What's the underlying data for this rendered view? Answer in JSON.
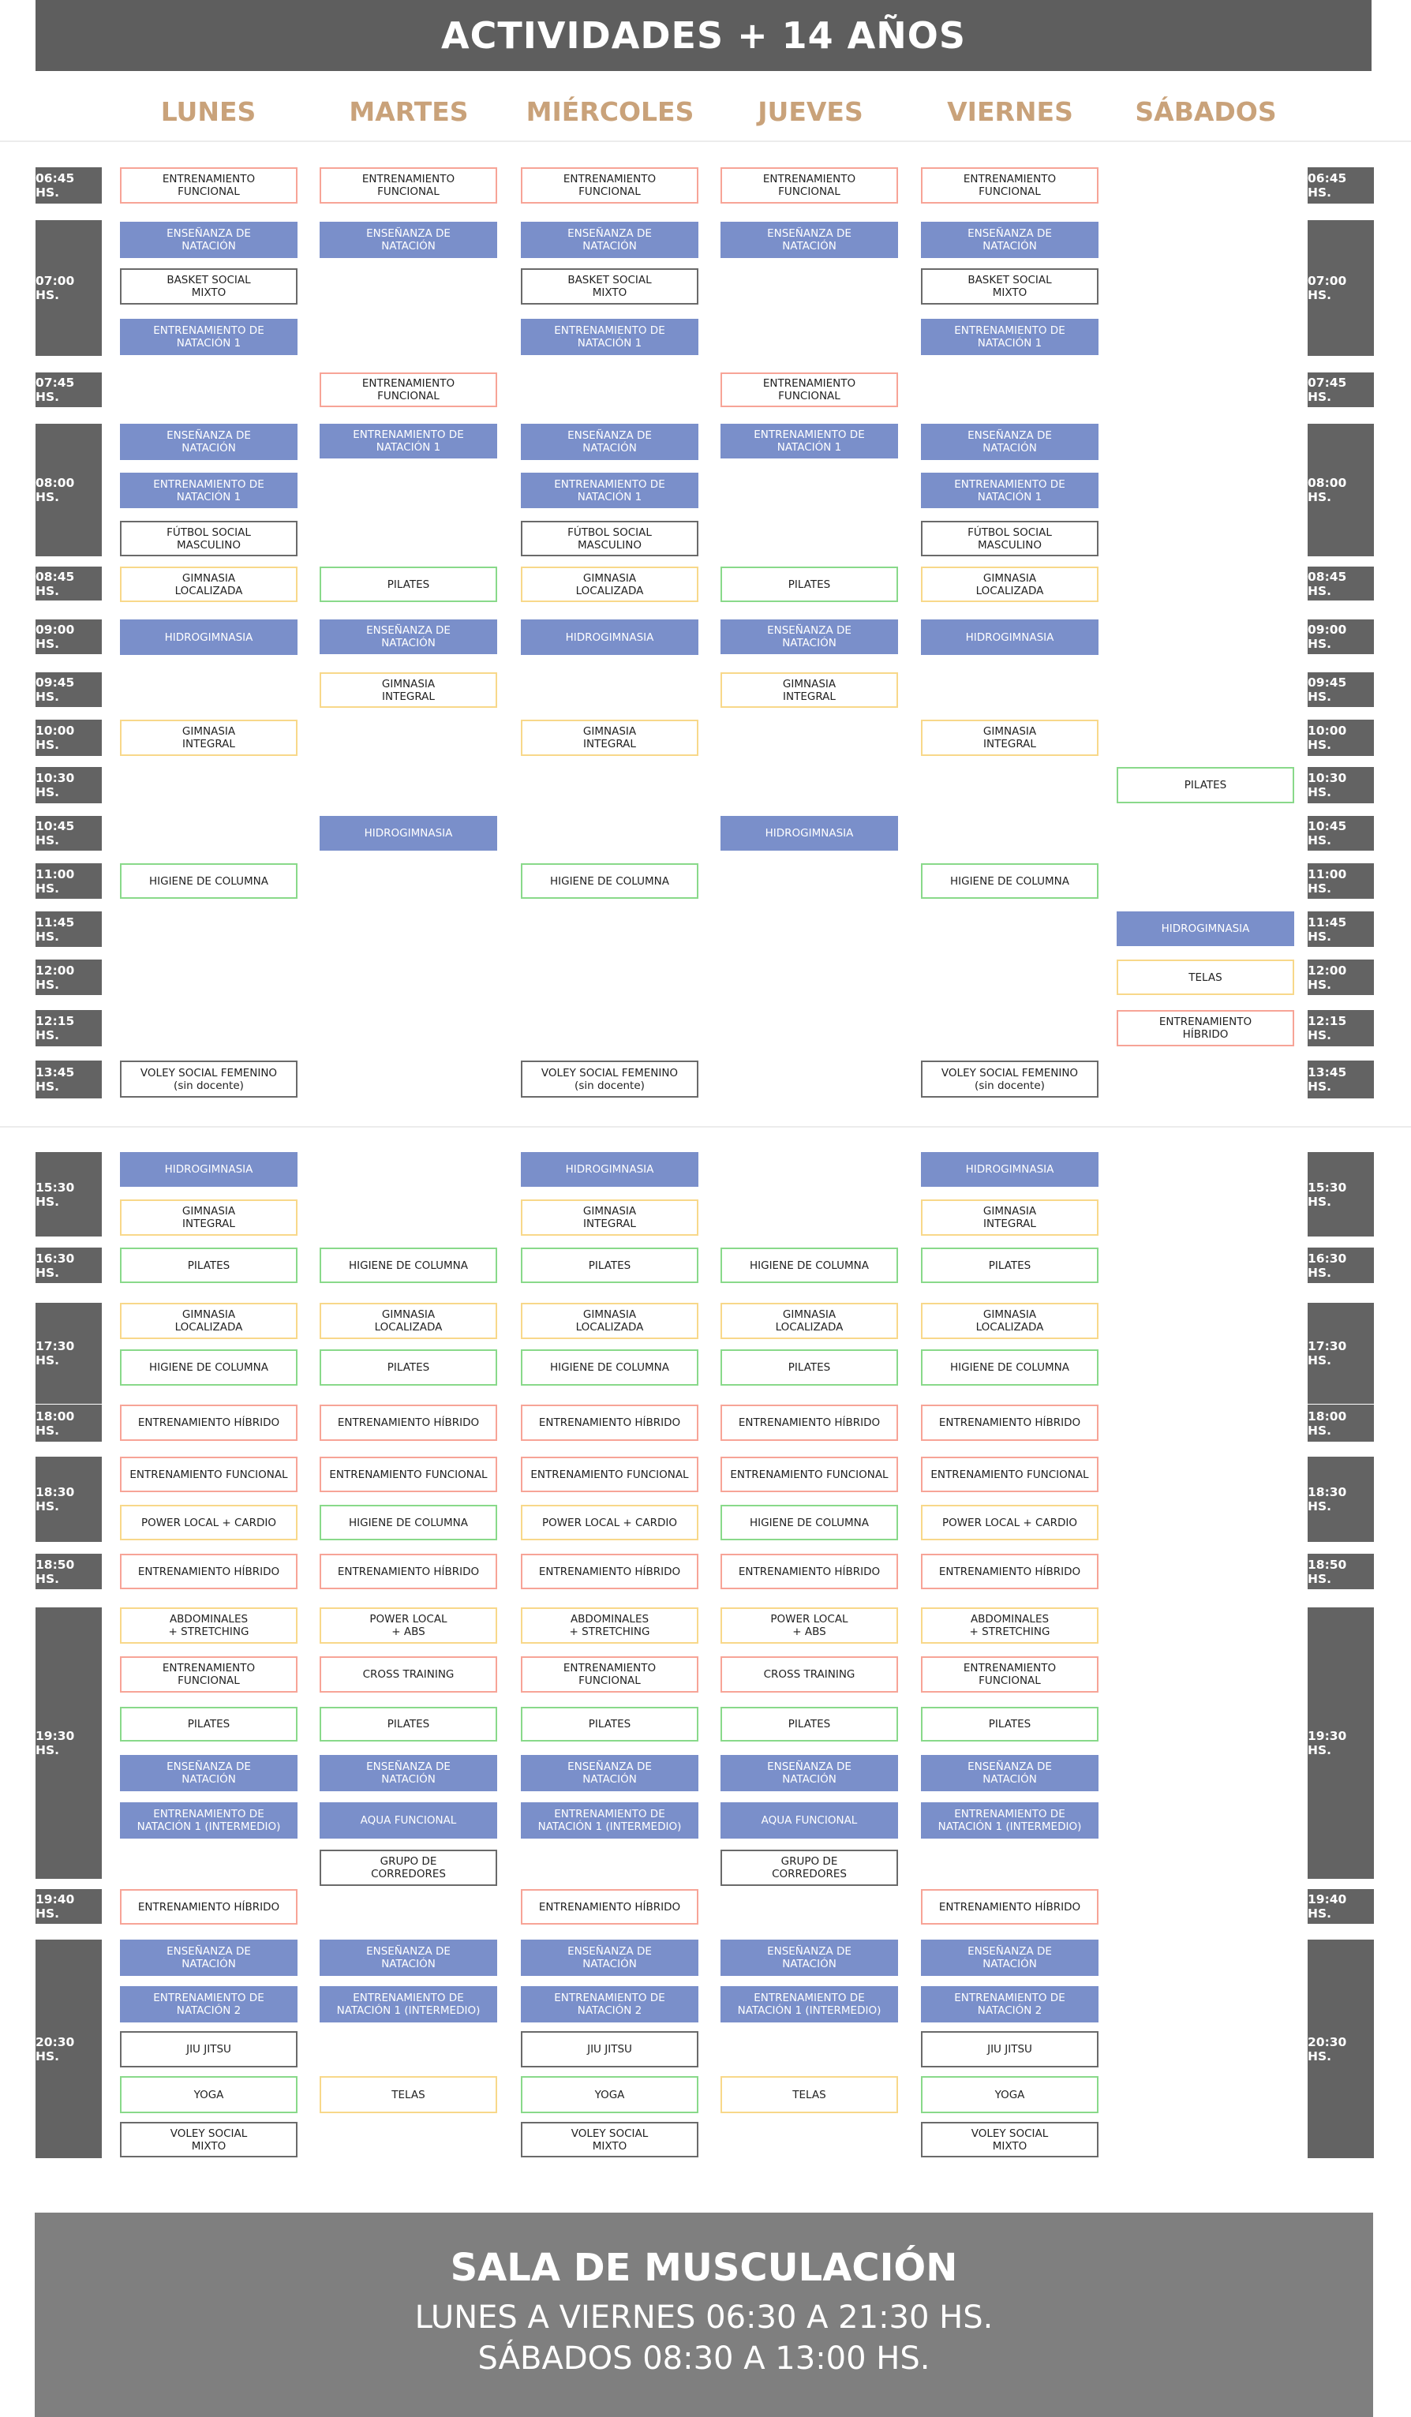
{
  "title": "ACTIVIDADES + 14 AÑOS",
  "days": [
    "LUNES",
    "MARTES",
    "MIÉRCOLES",
    "JUEVES",
    "VIERNES",
    "SÁBADOS"
  ],
  "colors": {
    "blue": "#7a8fca",
    "orange": "#f7a497",
    "yellow": "#f8d88a",
    "green": "#89d98a",
    "gray": "#6a6a6a",
    "day_header": "#c9a27a",
    "time_badge": "#636363"
  },
  "times": [
    "06:45 HS.",
    "07:00 HS.",
    "07:45 HS.",
    "08:00 HS.",
    "08:45 HS.",
    "09:00 HS.",
    "09:45 HS.",
    "10:00 HS.",
    "10:30 HS.",
    "10:45 HS.",
    "11:00 HS.",
    "11:45 HS.",
    "12:00 HS.",
    "12:15 HS.",
    "13:45 HS.",
    "15:30 HS.",
    "16:30 HS.",
    "17:30 HS.",
    "18:00 HS.",
    "18:30 HS.",
    "18:50 HS.",
    "19:30 HS.",
    "19:40 HS.",
    "20:30 HS."
  ],
  "activities": [
    {
      "t": "ENTRENAMIENTO\nFUNCIONAL",
      "c": "orange",
      "d": [
        0,
        1,
        2,
        3,
        4
      ]
    },
    {
      "t": "ENSEÑANZA DE\nNATACIÓN",
      "c": "blue",
      "d": [
        0,
        1,
        2,
        3,
        4
      ]
    },
    {
      "t": "BASKET SOCIAL\nMIXTO",
      "c": "gray",
      "d": [
        0,
        2,
        4
      ]
    },
    {
      "t": "ENTRENAMIENTO DE\nNATACIÓN 1",
      "c": "blue",
      "d": [
        0,
        2,
        4
      ]
    },
    {
      "t": "ENTRENAMIENTO\nFUNCIONAL",
      "c": "orange",
      "d": [
        1,
        3
      ]
    },
    {
      "t": "ENSEÑANZA DE\nNATACIÓN",
      "c": "blue",
      "d": [
        0,
        2,
        4
      ]
    },
    {
      "t": "ENTRENAMIENTO DE\nNATACIÓN 1",
      "c": "blue",
      "d": [
        1,
        3
      ]
    },
    {
      "t": "ENTRENAMIENTO DE\nNATACIÓN 1",
      "c": "blue",
      "d": [
        0,
        2,
        4
      ]
    },
    {
      "t": "FÚTBOL SOCIAL\nMASCULINO",
      "c": "gray",
      "d": [
        0,
        2,
        4
      ]
    },
    {
      "t": "GIMNASIA\nLOCALIZADA",
      "c": "yellow",
      "d": [
        0,
        2,
        4
      ]
    },
    {
      "t": "PILATES",
      "c": "green",
      "d": [
        1,
        3
      ]
    },
    {
      "t": "HIDROGIMNASIA",
      "c": "blue",
      "d": [
        0,
        2,
        4
      ]
    },
    {
      "t": "ENSEÑANZA DE\nNATACIÓN",
      "c": "blue",
      "d": [
        1,
        3
      ]
    },
    {
      "t": "GIMNASIA\nINTEGRAL",
      "c": "yellow",
      "d": [
        1,
        3
      ]
    },
    {
      "t": "GIMNASIA\nINTEGRAL",
      "c": "yellow",
      "d": [
        0,
        2,
        4
      ]
    },
    {
      "t": "PILATES",
      "c": "green",
      "d": [
        5
      ]
    },
    {
      "t": "HIDROGIMNASIA",
      "c": "blue",
      "d": [
        1,
        3
      ]
    },
    {
      "t": "HIGIENE DE COLUMNA",
      "c": "green",
      "d": [
        0,
        2,
        4
      ]
    },
    {
      "t": "HIDROGIMNASIA",
      "c": "blue",
      "d": [
        5
      ]
    },
    {
      "t": "TELAS",
      "c": "yellow",
      "d": [
        5
      ]
    },
    {
      "t": "ENTRENAMIENTO\nHÍBRIDO",
      "c": "orange",
      "d": [
        5
      ]
    },
    {
      "t": "VOLEY SOCIAL FEMENINO\n(sin docente)",
      "c": "gray",
      "d": [
        0,
        2,
        4
      ]
    },
    {
      "t": "HIDROGIMNASIA",
      "c": "blue",
      "d": [
        0,
        2,
        4
      ]
    },
    {
      "t": "GIMNASIA\nINTEGRAL",
      "c": "yellow",
      "d": [
        0,
        2,
        4
      ]
    },
    {
      "t": "PILATES",
      "c": "green",
      "d": [
        0,
        2,
        4
      ]
    },
    {
      "t": "HIGIENE DE COLUMNA",
      "c": "green",
      "d": [
        1,
        3
      ]
    },
    {
      "t": "GIMNASIA\nLOCALIZADA",
      "c": "yellow",
      "d": [
        0,
        1,
        2,
        3,
        4
      ]
    },
    {
      "t": "HIGIENE DE COLUMNA",
      "c": "green",
      "d": [
        0,
        2,
        4
      ]
    },
    {
      "t": "PILATES",
      "c": "green",
      "d": [
        1,
        3
      ]
    },
    {
      "t": "ENTRENAMIENTO HÍBRIDO",
      "c": "orange",
      "d": [
        0,
        1,
        2,
        3,
        4
      ]
    },
    {
      "t": "ENTRENAMIENTO FUNCIONAL",
      "c": "orange",
      "d": [
        0,
        1,
        2,
        3,
        4
      ]
    },
    {
      "t": "POWER LOCAL + CARDIO",
      "c": "yellow",
      "d": [
        0,
        2,
        4
      ]
    },
    {
      "t": "HIGIENE DE COLUMNA",
      "c": "green",
      "d": [
        1,
        3
      ]
    },
    {
      "t": "ENTRENAMIENTO HÍBRIDO",
      "c": "orange",
      "d": [
        0,
        1,
        2,
        3,
        4
      ]
    },
    {
      "t": "ABDOMINALES\n+ STRETCHING",
      "c": "yellow",
      "d": [
        0,
        2,
        4
      ]
    },
    {
      "t": "POWER LOCAL\n+ ABS",
      "c": "yellow",
      "d": [
        1,
        3
      ]
    },
    {
      "t": "ENTRENAMIENTO\nFUNCIONAL",
      "c": "orange",
      "d": [
        0,
        2,
        4
      ]
    },
    {
      "t": "CROSS TRAINING",
      "c": "orange",
      "d": [
        1,
        3
      ]
    },
    {
      "t": "PILATES",
      "c": "green",
      "d": [
        0,
        1,
        2,
        3,
        4
      ]
    },
    {
      "t": "ENSEÑANZA DE\nNATACIÓN",
      "c": "blue",
      "d": [
        0,
        1,
        2,
        3,
        4
      ]
    },
    {
      "t": "ENTRENAMIENTO DE\nNATACIÓN 1 (INTERMEDIO)",
      "c": "blue",
      "d": [
        0,
        2,
        4
      ]
    },
    {
      "t": "AQUA FUNCIONAL",
      "c": "blue",
      "d": [
        1,
        3
      ]
    },
    {
      "t": "GRUPO DE\nCORREDORES",
      "c": "gray",
      "d": [
        1,
        3
      ]
    },
    {
      "t": "ENTRENAMIENTO HÍBRIDO",
      "c": "orange",
      "d": [
        0,
        2,
        4
      ]
    },
    {
      "t": "ENSEÑANZA DE\nNATACIÓN",
      "c": "blue",
      "d": [
        0,
        1,
        2,
        3,
        4
      ]
    },
    {
      "t": "ENTRENAMIENTO DE\nNATACIÓN 2",
      "c": "blue",
      "d": [
        0,
        2,
        4
      ]
    },
    {
      "t": "ENTRENAMIENTO DE\nNATACIÓN 1 (INTERMEDIO)",
      "c": "blue",
      "d": [
        1,
        3
      ]
    },
    {
      "t": "JIU JITSU",
      "c": "gray",
      "d": [
        0,
        2,
        4
      ]
    },
    {
      "t": "YOGA",
      "c": "green",
      "d": [
        0,
        2,
        4
      ]
    },
    {
      "t": "TELAS",
      "c": "yellow",
      "d": [
        1,
        3
      ]
    },
    {
      "t": "VOLEY SOCIAL\nMIXTO",
      "c": "gray",
      "d": [
        0,
        2,
        4
      ]
    }
  ],
  "footer": {
    "title": "SALA DE MUSCULACIÓN",
    "line1": "LUNES A VIERNES 06:30 A 21:30 HS.",
    "line2": "SÁBADOS 08:30 A 13:00 HS."
  }
}
